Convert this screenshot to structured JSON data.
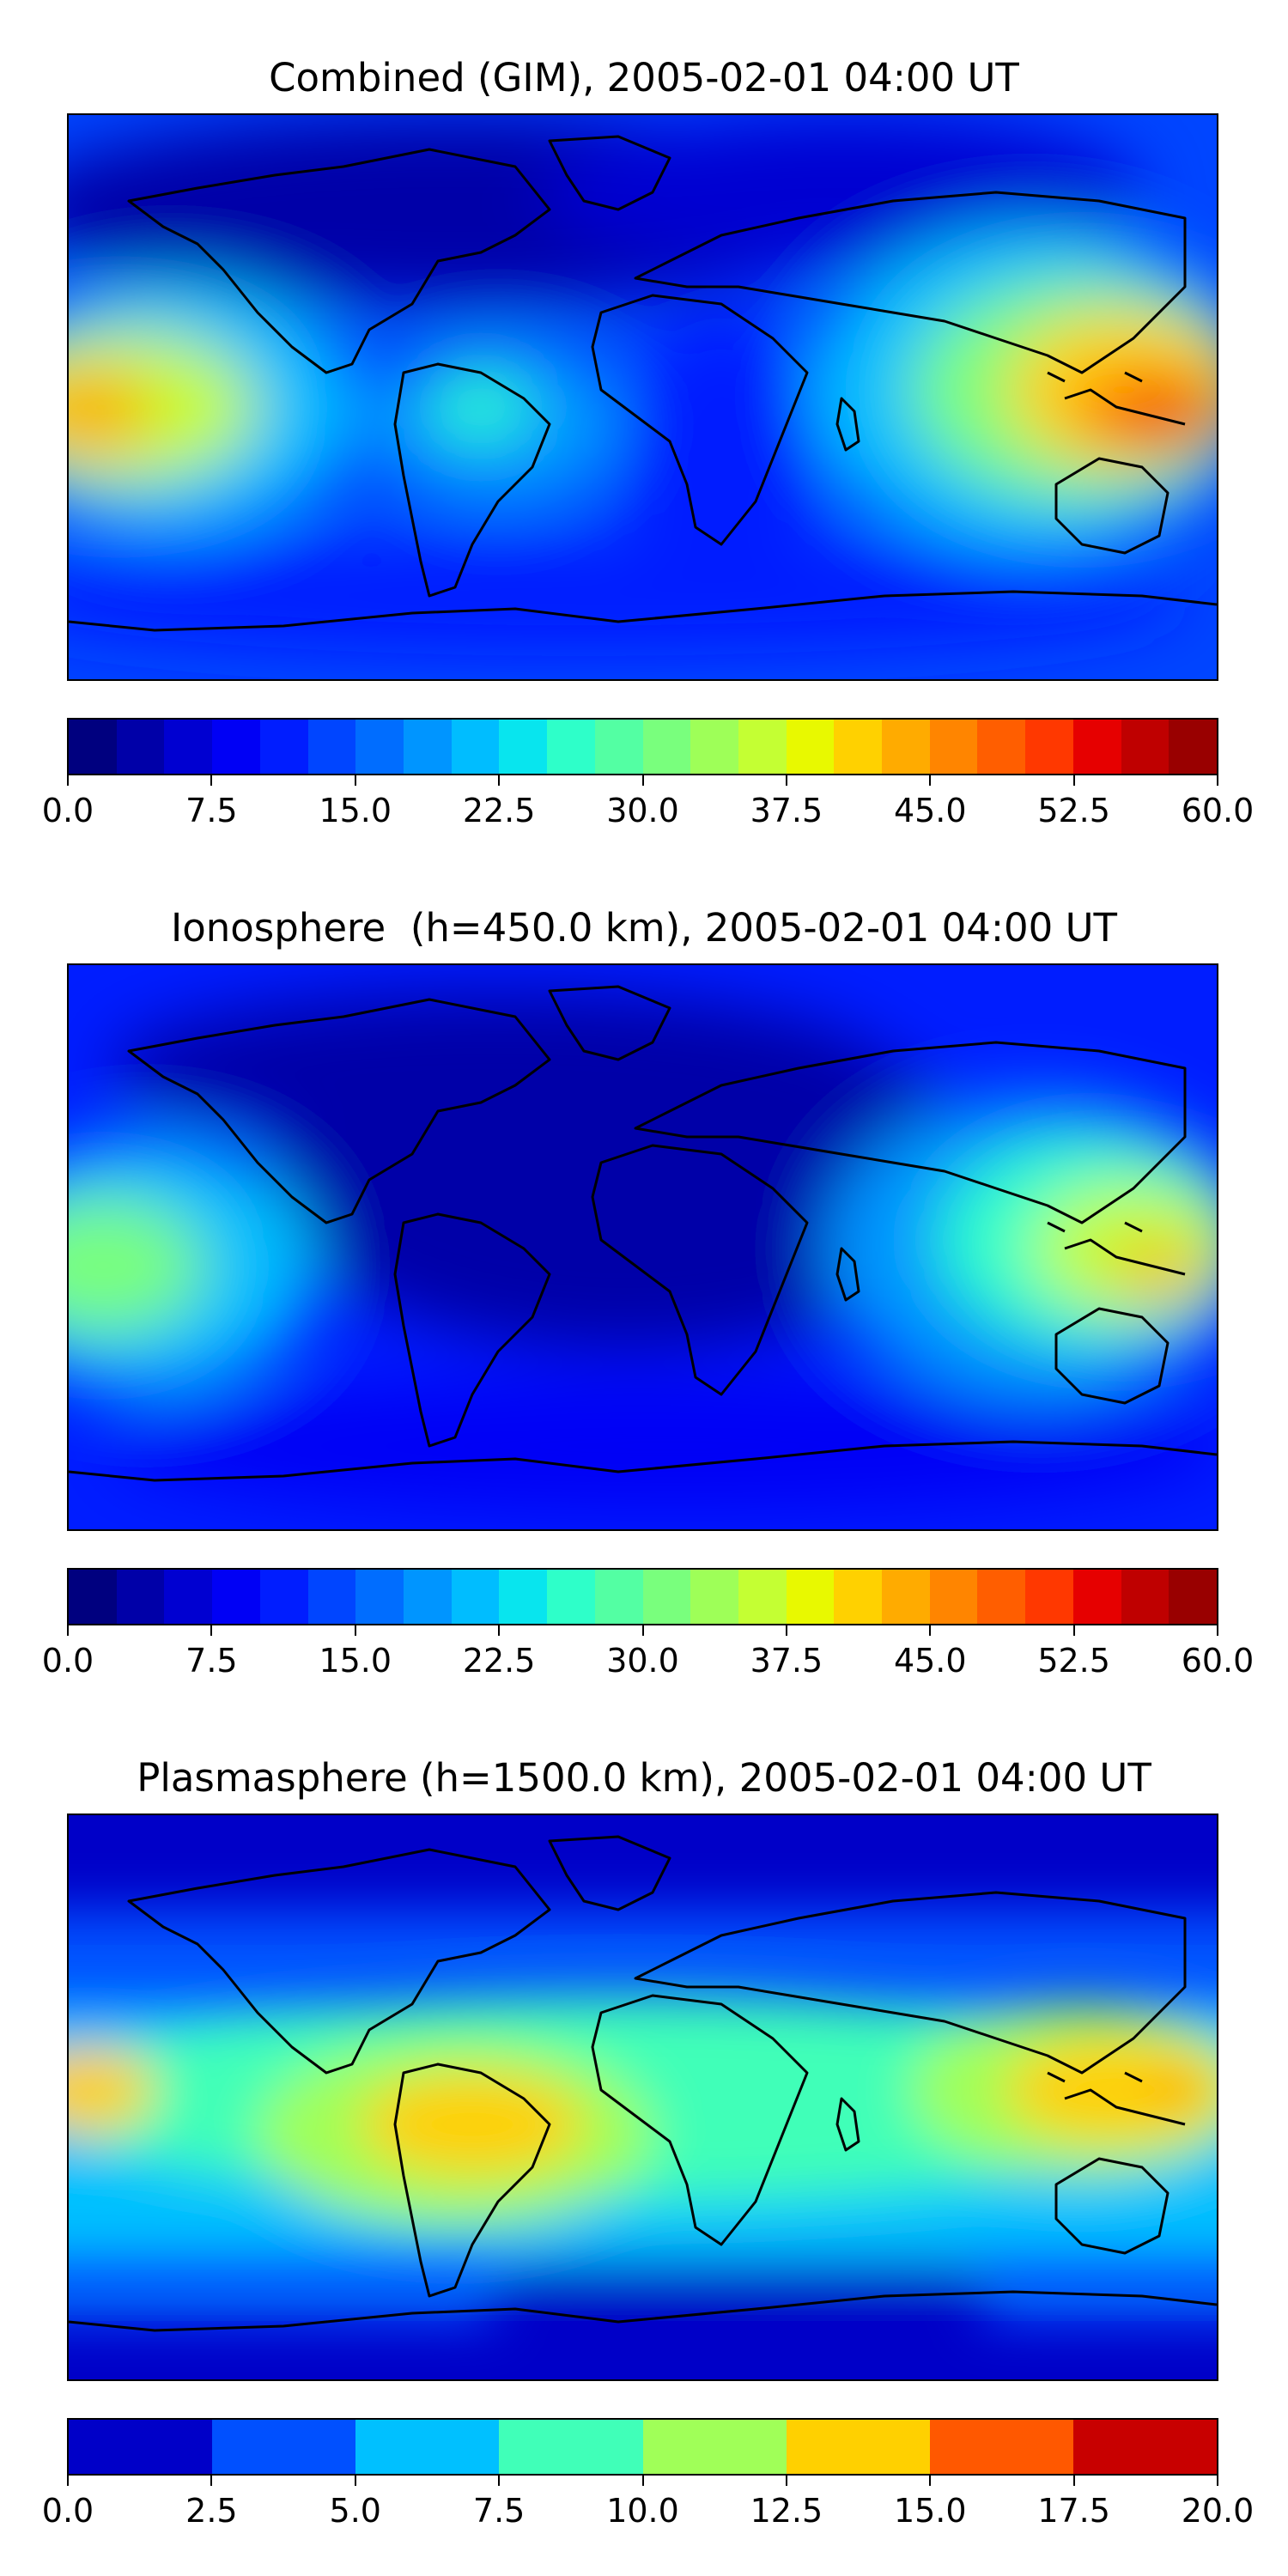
{
  "panels": [
    {
      "id": "combined",
      "title": "Combined (GIM), 2005-02-01 04:00 UT",
      "colorbar": {
        "min": 0.0,
        "max": 60.0,
        "ticks": [
          "0.0",
          "7.5",
          "15.0",
          "22.5",
          "30.0",
          "37.5",
          "45.0",
          "52.5",
          "60.0"
        ],
        "tick_values": [
          0,
          7.5,
          15,
          22.5,
          30,
          37.5,
          45,
          52.5,
          60
        ],
        "colors": [
          "#00007f",
          "#0000a8",
          "#0000d1",
          "#0000f5",
          "#001dff",
          "#0045ff",
          "#006dff",
          "#0095ff",
          "#00bdff",
          "#08e5ee",
          "#2effc9",
          "#53ffa3",
          "#79ff7d",
          "#9eff58",
          "#c4ff33",
          "#e8f900",
          "#ffd100",
          "#ffab00",
          "#ff8500",
          "#ff5e00",
          "#ff3800",
          "#e60000",
          "#bf0000",
          "#990000"
        ]
      }
    },
    {
      "id": "ionosphere",
      "title": "Ionosphere  (h=450.0 km), 2005-02-01 04:00 UT",
      "colorbar": {
        "min": 0.0,
        "max": 60.0,
        "ticks": [
          "0.0",
          "7.5",
          "15.0",
          "22.5",
          "30.0",
          "37.5",
          "45.0",
          "52.5",
          "60.0"
        ],
        "tick_values": [
          0,
          7.5,
          15,
          22.5,
          30,
          37.5,
          45,
          52.5,
          60
        ],
        "colors": [
          "#00007f",
          "#0000a8",
          "#0000d1",
          "#0000f5",
          "#001dff",
          "#0045ff",
          "#006dff",
          "#0095ff",
          "#00bdff",
          "#08e5ee",
          "#2effc9",
          "#53ffa3",
          "#79ff7d",
          "#9eff58",
          "#c4ff33",
          "#e8f900",
          "#ffd100",
          "#ffab00",
          "#ff8500",
          "#ff5e00",
          "#ff3800",
          "#e60000",
          "#bf0000",
          "#990000"
        ]
      }
    },
    {
      "id": "plasmasphere",
      "title": "Plasmasphere (h=1500.0 km), 2005-02-01 04:00 UT",
      "colorbar": {
        "min": 0.0,
        "max": 20.0,
        "ticks": [
          "0.0",
          "2.5",
          "5.0",
          "7.5",
          "10.0",
          "12.5",
          "15.0",
          "17.5",
          "20.0"
        ],
        "tick_values": [
          0,
          2.5,
          5,
          7.5,
          10,
          12.5,
          15,
          17.5,
          20
        ],
        "colors": [
          "#0000c8",
          "#0050ff",
          "#00c0ff",
          "#40ffb8",
          "#a0ff58",
          "#ffd000",
          "#ff5800",
          "#c80000"
        ]
      }
    }
  ]
}
